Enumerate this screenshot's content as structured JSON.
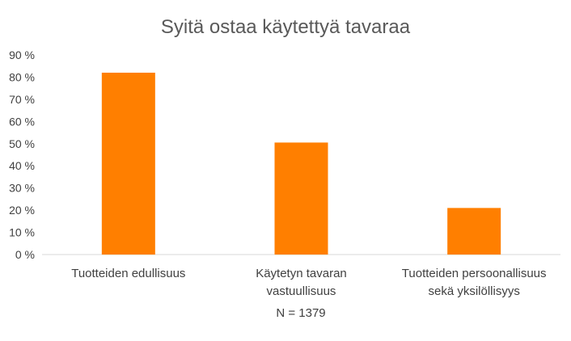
{
  "chart_data": {
    "type": "bar",
    "title": "Syitä ostaa käytettyä tavaraa",
    "categories": [
      [
        "Tuotteiden edullisuus"
      ],
      [
        "Käytetyn tavaran",
        "vastuullisuus"
      ],
      [
        "Tuotteiden persoonallisuus",
        "sekä yksilöllisyys"
      ]
    ],
    "values": [
      82,
      50.5,
      21
    ],
    "ylim": [
      0,
      90
    ],
    "yticks": [
      "0 %",
      "10 %",
      "20 %",
      "30 %",
      "40 %",
      "50 %",
      "60 %",
      "70 %",
      "80 %",
      "90 %"
    ],
    "ytick_values": [
      0,
      10,
      20,
      30,
      40,
      50,
      60,
      70,
      80,
      90
    ],
    "xlabel": "N = 1379",
    "ylabel": "",
    "grid": false,
    "bar_color": "#FF7F00"
  }
}
